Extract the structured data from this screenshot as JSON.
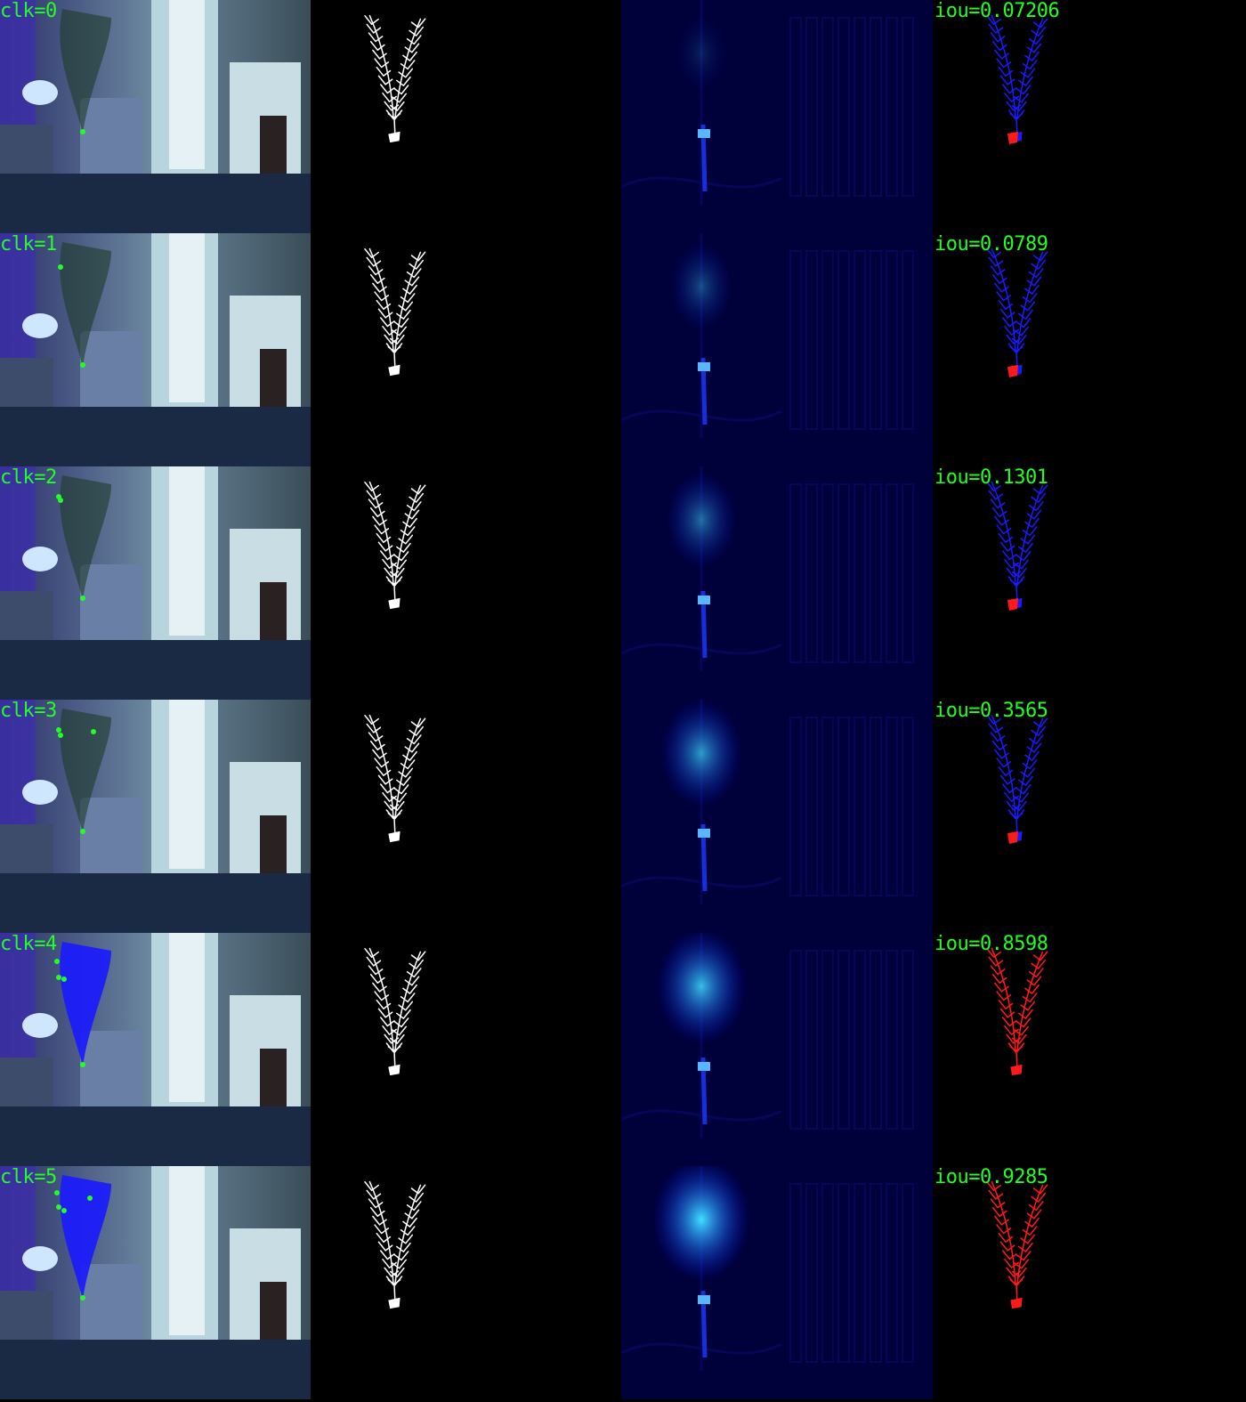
{
  "rows": [
    {
      "clicks": "clk=0",
      "iou": "iou=0.07206",
      "heat_intensity": 0.15,
      "correct_fraction": 0.08
    },
    {
      "clicks": "clk=1",
      "iou": "iou=0.0789",
      "heat_intensity": 0.35,
      "correct_fraction": 0.1
    },
    {
      "clicks": "clk=2",
      "iou": "iou=0.1301",
      "heat_intensity": 0.5,
      "correct_fraction": 0.15
    },
    {
      "clicks": "clk=3",
      "iou": "iou=0.3565",
      "heat_intensity": 0.7,
      "correct_fraction": 0.35
    },
    {
      "clicks": "clk=4",
      "iou": "iou=0.8598",
      "heat_intensity": 0.85,
      "correct_fraction": 0.85
    },
    {
      "clicks": "clk=5",
      "iou": "iou=0.9285",
      "heat_intensity": 1.0,
      "correct_fraction": 0.95
    }
  ],
  "colors": {
    "label": "#22ff22",
    "click_point": "#22ff22",
    "gt_mask": "#ffffff",
    "pred_mask": "#ff1a1a",
    "miss_mask": "#1a1aff",
    "heat_hot": "#40e0ff",
    "heat_cold": "#00004a"
  }
}
